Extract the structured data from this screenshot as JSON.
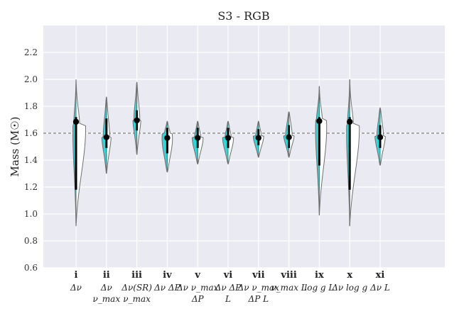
{
  "chart_data": {
    "type": "violin",
    "title": "S3 - RGB",
    "ylabel": "Mass (M☉)",
    "xlabel": "",
    "ylim": [
      0.6,
      2.4
    ],
    "yticks": [
      0.6,
      0.8,
      1.0,
      1.2,
      1.4,
      1.6,
      1.8,
      2.0,
      2.2
    ],
    "ytick_labels": [
      "0.6",
      "0.8",
      "1.0",
      "1.2",
      "1.4",
      "1.6",
      "1.8",
      "2.0",
      "2.2"
    ],
    "reference_line": 1.6,
    "grid": true,
    "colors": {
      "background": "#EAEAF2",
      "grid": "#FFFFFF",
      "left_fill": "#22DDDD",
      "right_fill": "#FFFFFF",
      "outline": "#707070",
      "marker": "#000000",
      "reference": "#606060"
    },
    "categories": [
      {
        "roman": "i",
        "line1": "Δν",
        "line2": "",
        "median": 1.685,
        "ci": [
          1.18,
          1.72
        ],
        "min": 0.91,
        "max": 2.0,
        "peak": 1.66,
        "lw": 0.16,
        "rw": 0.25,
        "lw2": 0.1,
        "rw2": 0.8,
        "lb": 0.1,
        "rb": 0.1
      },
      {
        "roman": "ii",
        "line1": "Δν",
        "line2": "ν_max",
        "median": 1.57,
        "ci": [
          1.49,
          1.71
        ],
        "min": 1.3,
        "max": 1.87,
        "peak": 1.57,
        "lw": 0.2,
        "rw": 0.2,
        "lw2": 0.17,
        "rw2": 0.17,
        "lb": 0.35,
        "rb": 0.35
      },
      {
        "roman": "iii",
        "line1": "Δν(SR)",
        "line2": "ν_max",
        "median": 1.695,
        "ci": [
          1.62,
          1.77
        ],
        "min": 1.44,
        "max": 1.98,
        "peak": 1.7,
        "lw": 0.18,
        "rw": 0.18,
        "lw2": 0.13,
        "rw2": 0.13,
        "lb": 0.3,
        "rb": 0.3
      },
      {
        "roman": "iv",
        "line1": "Δν ΔP",
        "line2": "",
        "median": 1.565,
        "ci": [
          1.45,
          1.64
        ],
        "min": 1.31,
        "max": 1.69,
        "peak": 1.6,
        "lw": 0.22,
        "rw": 0.22,
        "lw2": 0.3,
        "rw2": 0.3,
        "lb": 0.45,
        "rb": 0.45
      },
      {
        "roman": "v",
        "line1": "Δν ν_max",
        "line2": "ΔP",
        "median": 1.565,
        "ci": [
          1.49,
          1.64
        ],
        "min": 1.37,
        "max": 1.69,
        "peak": 1.57,
        "lw": 0.2,
        "rw": 0.2,
        "lw2": 0.3,
        "rw2": 0.3,
        "lb": 0.45,
        "rb": 0.45
      },
      {
        "roman": "vi",
        "line1": "Δν ΔP",
        "line2": "L",
        "median": 1.565,
        "ci": [
          1.49,
          1.64
        ],
        "min": 1.37,
        "max": 1.69,
        "peak": 1.57,
        "lw": 0.2,
        "rw": 0.2,
        "lw2": 0.3,
        "rw2": 0.3,
        "lb": 0.45,
        "rb": 0.45
      },
      {
        "roman": "vii",
        "line1": "Δν ν_max",
        "line2": "ΔP L",
        "median": 1.565,
        "ci": [
          1.51,
          1.63
        ],
        "min": 1.42,
        "max": 1.69,
        "peak": 1.58,
        "lw": 0.18,
        "rw": 0.18,
        "lw2": 0.3,
        "rw2": 0.3,
        "lb": 0.45,
        "rb": 0.45
      },
      {
        "roman": "viii",
        "line1": "ν_max L",
        "line2": "",
        "median": 1.57,
        "ci": [
          1.49,
          1.66
        ],
        "min": 1.42,
        "max": 1.76,
        "peak": 1.58,
        "lw": 0.2,
        "rw": 0.2,
        "lw2": 0.25,
        "rw2": 0.25,
        "lb": 0.45,
        "rb": 0.45
      },
      {
        "roman": "ix",
        "line1": "log g  L",
        "line2": "",
        "median": 1.69,
        "ci": [
          1.36,
          1.72
        ],
        "min": 0.99,
        "max": 1.95,
        "peak": 1.7,
        "lw": 0.21,
        "rw": 0.22,
        "lw2": 0.1,
        "rw2": 0.6,
        "lb": 0.1,
        "rb": 0.1
      },
      {
        "roman": "x",
        "line1": "Δν log g",
        "line2": "",
        "median": 1.685,
        "ci": [
          1.18,
          1.72
        ],
        "min": 0.91,
        "max": 2.0,
        "peak": 1.66,
        "lw": 0.16,
        "rw": 0.25,
        "lw2": 0.1,
        "rw2": 0.8,
        "lb": 0.1,
        "rb": 0.1
      },
      {
        "roman": "xi",
        "line1": "Δν L",
        "line2": "",
        "median": 1.57,
        "ci": [
          1.49,
          1.66
        ],
        "min": 1.36,
        "max": 1.79,
        "peak": 1.58,
        "lw": 0.2,
        "rw": 0.2,
        "lw2": 0.25,
        "rw2": 0.25,
        "lb": 0.45,
        "rb": 0.45
      }
    ]
  }
}
